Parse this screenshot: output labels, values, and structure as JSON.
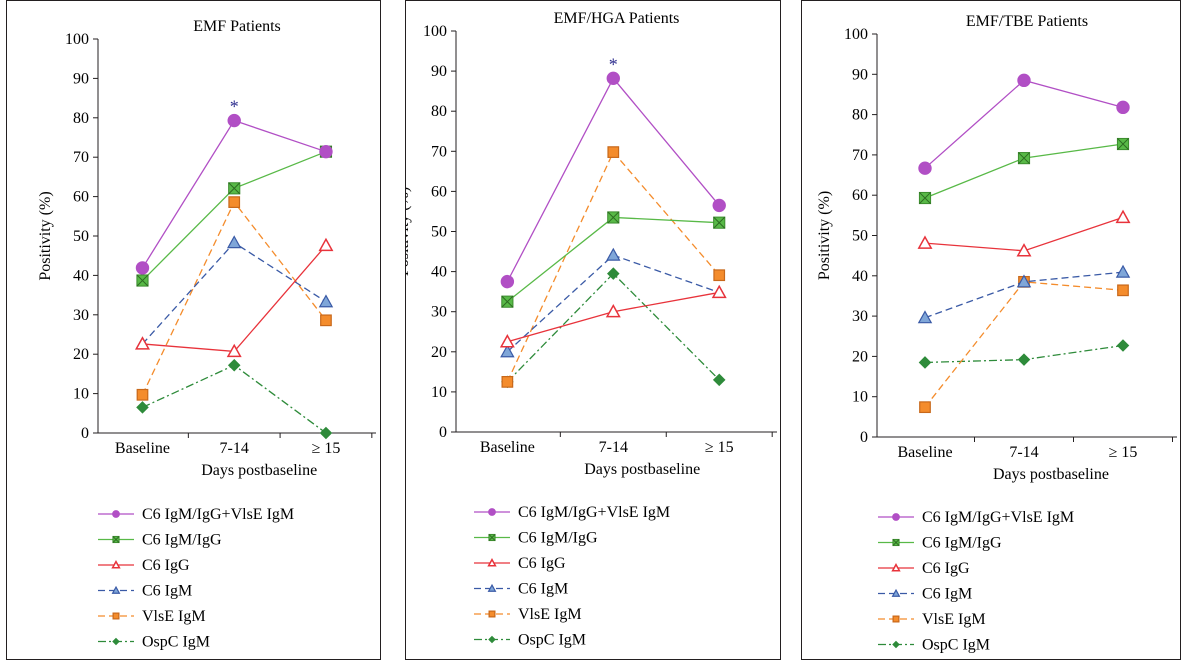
{
  "colors": {
    "C6 IgM/IgG+VlsE IgM": "#b14fc5",
    "C6 IgM/IgG": "#58b947",
    "C6 IgG": "#e8333b",
    "C6 IgM": "#3a5aa6",
    "VlsE IgM": "#f48c2c",
    "OspC IgM": "#2e8b3a",
    "star": "#2f2f8f"
  },
  "legend_entries": [
    "C6 IgM/IgG+VlsE IgM",
    "C6 IgM/IgG",
    "C6 IgG",
    "C6 IgM",
    "VlsE IgM",
    "OspC IgM"
  ],
  "chart_data": [
    {
      "type": "line",
      "title": "EMF Patients",
      "xlabel": "Days postbaseline",
      "ylabel": "Positivity (%)",
      "categories": [
        "Baseline",
        "7-14",
        "≥ 15"
      ],
      "ylim": [
        0,
        100
      ],
      "yticks": [
        "0",
        "10",
        "20",
        "30",
        "40",
        "50",
        "60",
        "70",
        "80",
        "90",
        "100"
      ],
      "star_label": "*",
      "star_category": "7-14",
      "series": [
        {
          "name": "C6 IgM/IgG+VlsE IgM",
          "values": [
            41.9,
            79.3,
            71.4
          ]
        },
        {
          "name": "C6 IgM/IgG",
          "values": [
            38.7,
            62.1,
            71.4
          ]
        },
        {
          "name": "C6 IgG",
          "values": [
            22.6,
            20.7,
            47.6
          ]
        },
        {
          "name": "C6 IgM",
          "values": [
            22.6,
            48.3,
            33.3
          ]
        },
        {
          "name": "VlsE IgM",
          "values": [
            9.7,
            58.6,
            28.6
          ]
        },
        {
          "name": "OspC IgM",
          "values": [
            6.5,
            17.2,
            0
          ]
        }
      ]
    },
    {
      "type": "line",
      "title": "EMF/HGA Patients",
      "xlabel": "Days postbaseline",
      "ylabel": "Positivity (%)",
      "categories": [
        "Baseline",
        "7-14",
        "≥ 15"
      ],
      "ylim": [
        0,
        100
      ],
      "yticks": [
        "0",
        "10",
        "20",
        "30",
        "40",
        "50",
        "60",
        "70",
        "80",
        "90",
        "100"
      ],
      "star_label": "*",
      "star_category": "7-14",
      "series": [
        {
          "name": "C6 IgM/IgG+VlsE IgM",
          "values": [
            37.5,
            88.2,
            56.5
          ]
        },
        {
          "name": "C6 IgM/IgG",
          "values": [
            32.5,
            53.5,
            52.2
          ]
        },
        {
          "name": "C6 IgG",
          "values": [
            22.5,
            30.0,
            34.8
          ]
        },
        {
          "name": "C6 IgM",
          "values": [
            20.0,
            44.1,
            34.8
          ]
        },
        {
          "name": "VlsE IgM",
          "values": [
            12.5,
            69.8,
            39.1
          ]
        },
        {
          "name": "OspC IgM",
          "values": [
            12.5,
            39.5,
            13.0
          ]
        }
      ]
    },
    {
      "type": "line",
      "title": "EMF/TBE Patients",
      "xlabel": "Days postbaseline",
      "ylabel": "Positivity (%)",
      "categories": [
        "Baseline",
        "7-14",
        "≥ 15"
      ],
      "ylim": [
        0,
        100
      ],
      "yticks": [
        "0",
        "10",
        "20",
        "30",
        "40",
        "50",
        "60",
        "70",
        "80",
        "90",
        "100"
      ],
      "star_label": "",
      "star_category": "",
      "series": [
        {
          "name": "C6 IgM/IgG+VlsE IgM",
          "values": [
            66.7,
            88.5,
            81.8
          ]
        },
        {
          "name": "C6 IgM/IgG",
          "values": [
            59.3,
            69.2,
            72.7
          ]
        },
        {
          "name": "C6 IgG",
          "values": [
            48.1,
            46.2,
            54.5
          ]
        },
        {
          "name": "C6 IgM",
          "values": [
            29.6,
            38.5,
            40.9
          ]
        },
        {
          "name": "VlsE IgM",
          "values": [
            7.4,
            38.5,
            36.4
          ]
        },
        {
          "name": "OspC IgM",
          "values": [
            18.5,
            19.2,
            22.7
          ]
        }
      ]
    }
  ]
}
